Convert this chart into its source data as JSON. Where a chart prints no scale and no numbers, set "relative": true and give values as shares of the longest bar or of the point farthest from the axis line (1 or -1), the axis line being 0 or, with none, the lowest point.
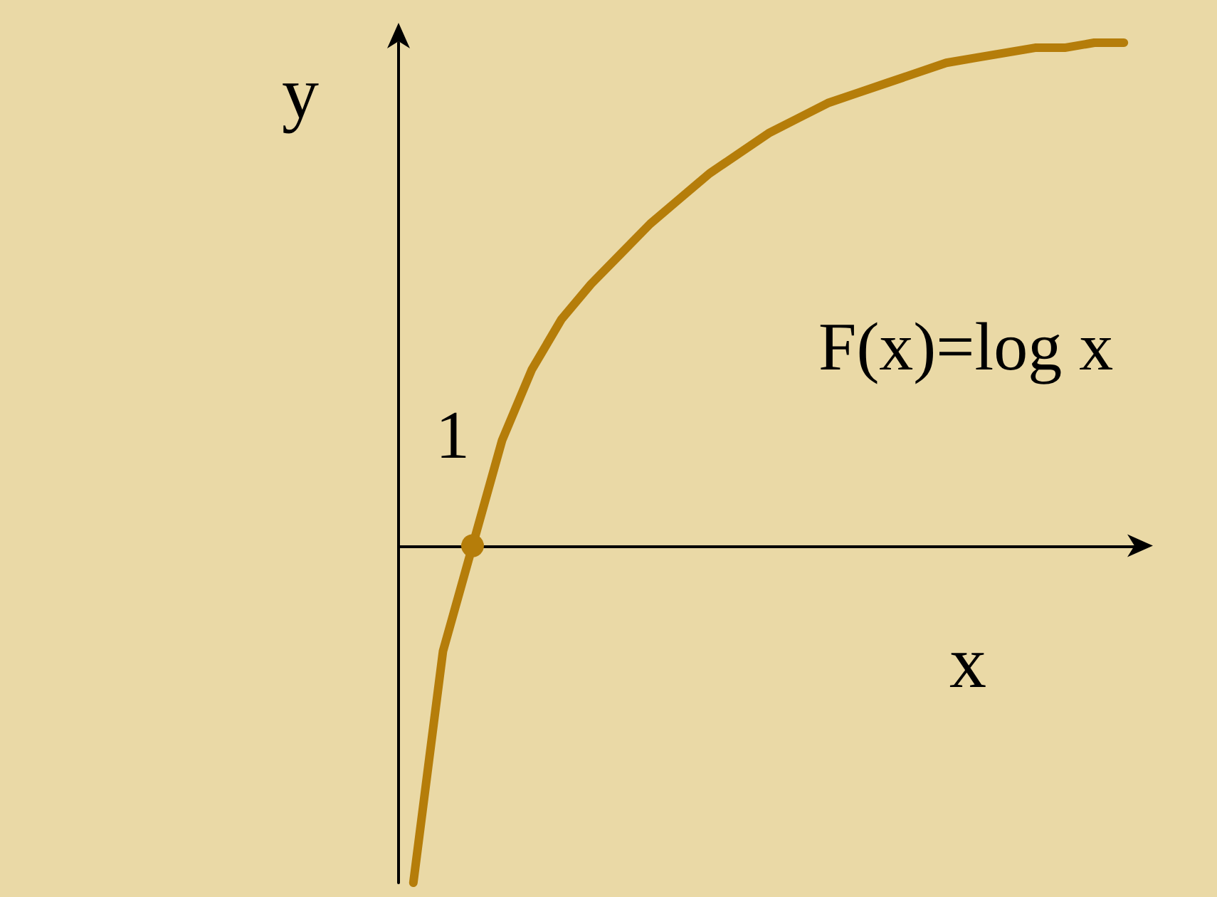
{
  "chart_data": {
    "type": "line",
    "relative": true,
    "xlabel": "x",
    "ylabel": "y",
    "annotations": [
      "1"
    ],
    "categories": [
      null,
      null,
      null,
      null,
      null,
      null,
      null,
      null,
      null,
      null,
      null,
      null,
      null,
      null,
      null,
      null,
      null,
      null,
      null,
      null,
      null,
      null,
      null,
      null,
      null
    ],
    "series": [
      {
        "name": "F(x)=log x",
        "color": "#b57d0a",
        "values": [
          -0.67,
          -0.21,
          0,
          0.21,
          0.35,
          0.45,
          0.52,
          0.58,
          0.64,
          0.69,
          0.74,
          0.78,
          0.82,
          0.85,
          0.88,
          0.9,
          0.92,
          0.94,
          0.96,
          0.97,
          0.98,
          0.99,
          0.99,
          1,
          1
        ]
      }
    ],
    "grid": false,
    "legend": false
  }
}
